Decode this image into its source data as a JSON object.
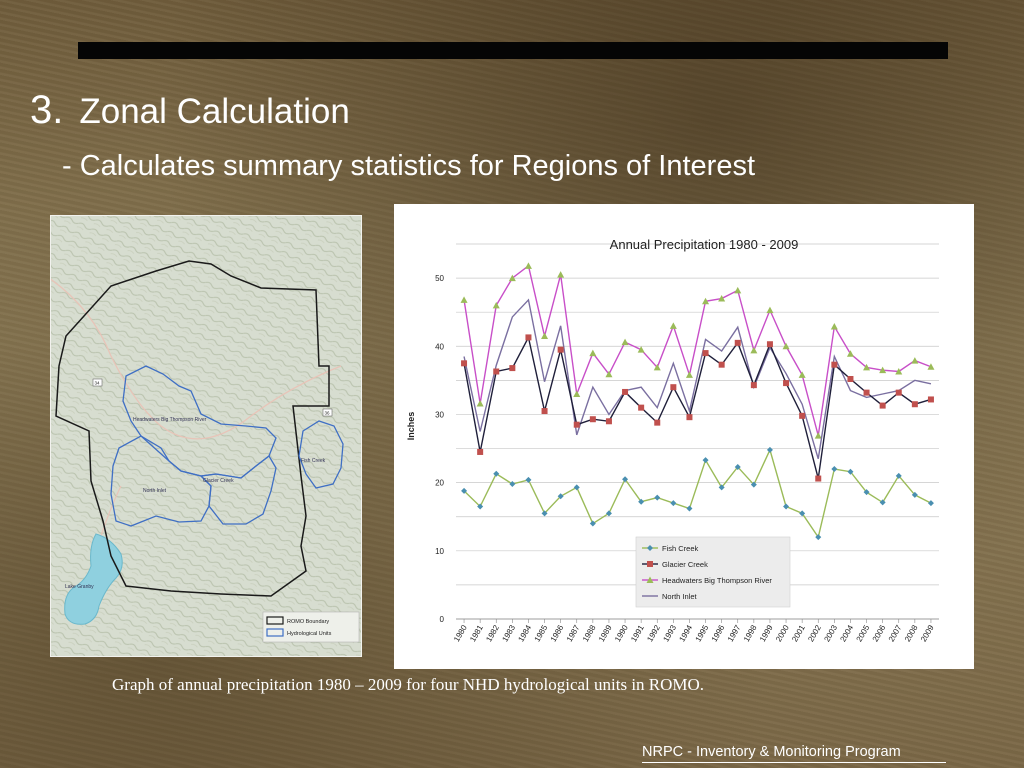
{
  "slide": {
    "number": "3.",
    "title": "Zonal Calculation",
    "subtitle": "- Calculates summary statistics for Regions of Interest",
    "caption": "Graph of annual precipitation 1980 – 2009 for four NHD hydrological units in ROMO.",
    "footer": "NRPC - Inventory & Monitoring Program"
  },
  "map": {
    "legend": [
      {
        "label": "ROMO Boundary",
        "color": "#1a1a1a"
      },
      {
        "label": "Hydrological Units",
        "color": "#3f6fc4"
      }
    ],
    "unit_labels": [
      "Headwaters Big Thompson River",
      "Fish Creek",
      "Glacier Creek",
      "North Inlet"
    ],
    "road_labels": [
      "34",
      "36"
    ],
    "lake_label": "Lake Granby"
  },
  "colors": {
    "fish_creek": "#4a8fb0",
    "glacier_creek": "#c0504d",
    "headwaters": "#9bbb59",
    "headwaters_line": "#c84fc8",
    "north_inlet": "#7a6fa0",
    "map_boundary": "#1a1a1a",
    "map_units": "#3f6fc4"
  },
  "chart_data": {
    "type": "line",
    "title": "Annual Precipitation 1980 - 2009",
    "ylabel": "Inches",
    "xlabel": "",
    "ylim": [
      0,
      55
    ],
    "yticks": [
      0,
      10,
      20,
      30,
      40,
      50
    ],
    "grid": true,
    "legend_position": "bottom-center",
    "x": [
      "1980",
      "1981",
      "1982",
      "1983",
      "1984",
      "1985",
      "1986",
      "1987",
      "1988",
      "1989",
      "1990",
      "1991",
      "1992",
      "1993",
      "1994",
      "1995",
      "1996",
      "1997",
      "1998",
      "1999",
      "2000",
      "2001",
      "2002",
      "2003",
      "2004",
      "2005",
      "2006",
      "2007",
      "2008",
      "2009"
    ],
    "series": [
      {
        "name": "Fish Creek",
        "color": "#4a8fb0",
        "line_color": "#9bbb59",
        "marker": "diamond",
        "values": [
          18.8,
          16.5,
          21.3,
          19.8,
          20.4,
          15.5,
          18.0,
          19.3,
          14.0,
          15.5,
          20.5,
          17.2,
          17.8,
          17.0,
          16.2,
          23.3,
          19.3,
          22.3,
          19.7,
          24.8,
          16.5,
          15.5,
          12.0,
          22.0,
          21.6,
          18.6,
          17.1,
          21.0,
          18.2,
          17.0
        ]
      },
      {
        "name": "Glacier Creek",
        "color": "#c0504d",
        "line_color": "#1f1f3a",
        "marker": "square",
        "values": [
          37.5,
          24.5,
          36.3,
          36.8,
          41.3,
          30.5,
          39.5,
          28.5,
          29.3,
          29.0,
          33.3,
          31.0,
          28.8,
          34.0,
          29.6,
          39.0,
          37.3,
          40.5,
          34.3,
          40.3,
          34.6,
          29.8,
          20.6,
          37.3,
          35.2,
          33.2,
          31.3,
          33.2,
          31.5,
          32.2
        ]
      },
      {
        "name": "Headwaters Big Thompson River",
        "color": "#9bbb59",
        "line_color": "#c84fc8",
        "marker": "triangle",
        "values": [
          46.8,
          31.6,
          46.0,
          50.0,
          51.8,
          41.5,
          50.5,
          33.0,
          39.0,
          35.9,
          40.6,
          39.5,
          36.9,
          43.0,
          35.8,
          46.6,
          47.0,
          48.2,
          39.4,
          45.3,
          40.0,
          35.8,
          26.9,
          42.9,
          38.9,
          36.9,
          36.5,
          36.3,
          37.9,
          37.0
        ]
      },
      {
        "name": "North Inlet",
        "color": "#7a6fa0",
        "line_color": "#7a6fa0",
        "marker": "none",
        "values": [
          38.5,
          27.5,
          37.2,
          44.3,
          46.8,
          34.8,
          43.0,
          27.0,
          34.0,
          30.0,
          33.5,
          34.0,
          31.0,
          37.5,
          30.5,
          41.0,
          39.3,
          42.8,
          34.0,
          39.8,
          36.0,
          31.5,
          23.5,
          38.5,
          33.5,
          32.5,
          33.0,
          33.5,
          35.0,
          34.5
        ]
      }
    ]
  }
}
